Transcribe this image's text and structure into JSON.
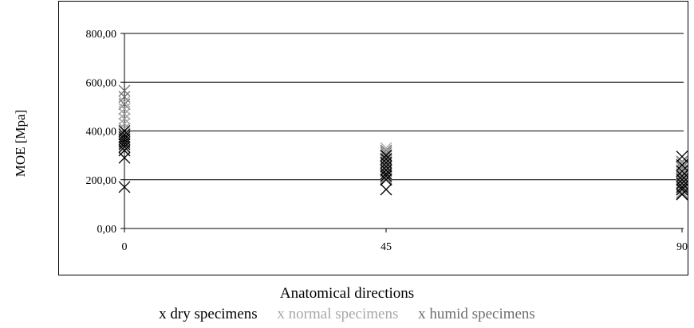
{
  "chart_data": {
    "type": "scatter",
    "xlabel": "Anatomical directions",
    "ylabel": "MOE [Mpa]",
    "x_ticks": [
      "0",
      "45",
      "90"
    ],
    "y_ticks": [
      "0,00",
      "200,00",
      "400,00",
      "600,00",
      "800,00"
    ],
    "ylim": [
      0,
      800
    ],
    "grid": "horizontal",
    "legend_position": "bottom",
    "marker": "x",
    "series": [
      {
        "name": "x dry specimens",
        "color": "#000000",
        "x": [
          0,
          0,
          0,
          0,
          0,
          0,
          0,
          0,
          0,
          0,
          45,
          45,
          45,
          45,
          45,
          45,
          45,
          45,
          45,
          90,
          90,
          90,
          90,
          90,
          90,
          90,
          90,
          90
        ],
        "y": [
          170,
          290,
          320,
          335,
          345,
          355,
          365,
          375,
          385,
          400,
          160,
          200,
          215,
          225,
          240,
          255,
          270,
          285,
          300,
          140,
          160,
          170,
          185,
          200,
          215,
          235,
          260,
          295
        ]
      },
      {
        "name": "x normal specimens",
        "color": "#a8a8a8",
        "x": [
          0,
          0,
          0,
          0,
          0,
          0,
          0,
          0,
          0,
          0,
          45,
          45,
          45,
          45,
          45,
          45,
          45,
          45,
          45,
          90,
          90,
          90,
          90,
          90,
          90,
          90,
          90,
          90
        ],
        "y": [
          330,
          350,
          370,
          390,
          410,
          430,
          450,
          470,
          490,
          520,
          210,
          225,
          240,
          255,
          270,
          285,
          300,
          315,
          330,
          150,
          165,
          180,
          195,
          210,
          225,
          240,
          255,
          270
        ]
      },
      {
        "name": "x humid specimens",
        "color": "#6e6e6e",
        "x": [
          0,
          0,
          0,
          0,
          0,
          0,
          0,
          0,
          0,
          0,
          0,
          45,
          45,
          45,
          45,
          45,
          45,
          45,
          45,
          45,
          90,
          90,
          90,
          90,
          90,
          90,
          90,
          90,
          90
        ],
        "y": [
          350,
          370,
          390,
          410,
          430,
          450,
          470,
          490,
          510,
          540,
          565,
          205,
          220,
          235,
          250,
          265,
          280,
          295,
          310,
          320,
          145,
          160,
          175,
          190,
          205,
          220,
          235,
          250,
          275
        ]
      }
    ]
  }
}
